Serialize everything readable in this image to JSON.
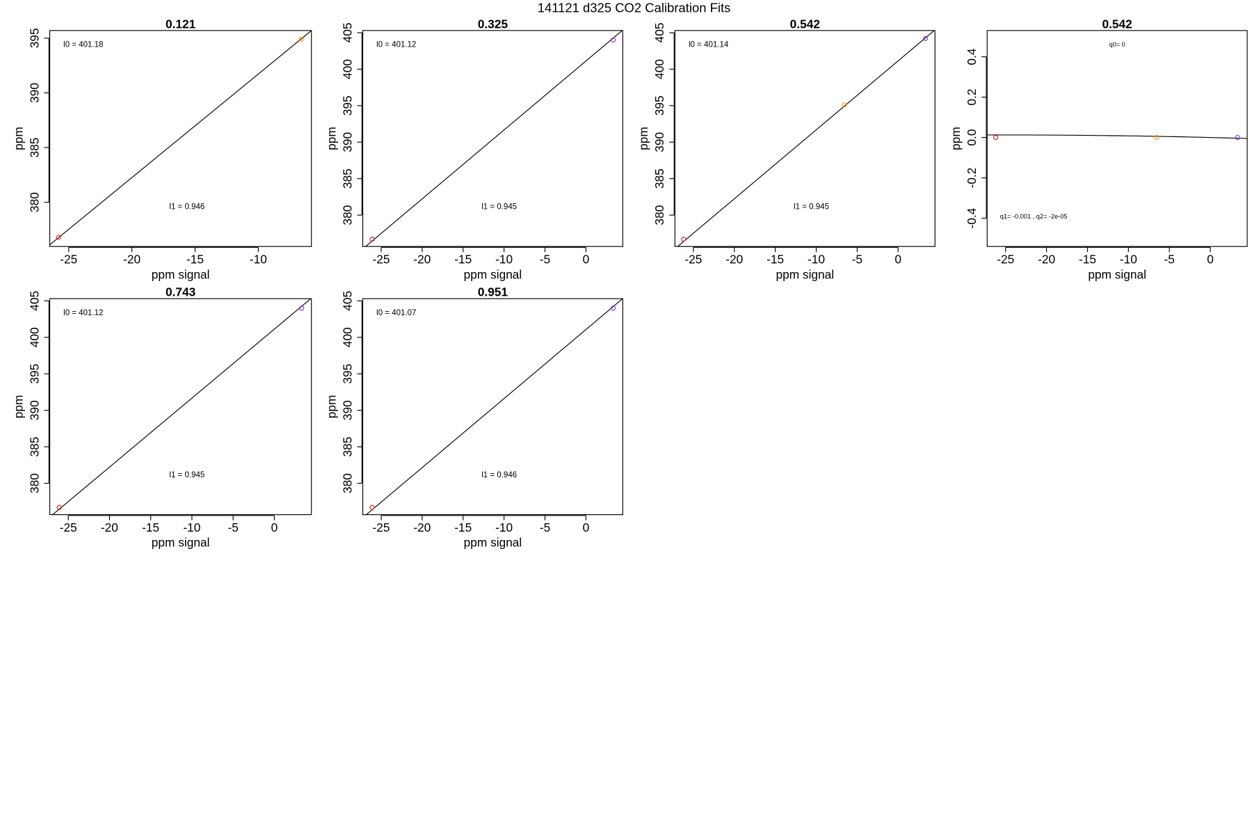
{
  "title": "141121   d325   CO2 Calibration Fits",
  "chart_data": [
    {
      "type": "scatter",
      "title": "0.121",
      "xlabel": "ppm signal",
      "ylabel": "ppm",
      "annotations": [
        "l0 =  401.18",
        "l1 =  0.946"
      ],
      "fit": {
        "intercept": 401.18,
        "slope": 0.946
      },
      "points": {
        "x": [
          -25.8,
          -6.6
        ],
        "values": [
          376.8,
          394.9
        ],
        "colors": [
          "#e41a1c",
          "#ff9900"
        ]
      },
      "xlim": [
        -26.5,
        -5.8
      ],
      "ylim": [
        375.96,
        395.7
      ],
      "xticks": [
        -25,
        -20,
        -15,
        -10
      ],
      "yticks": [
        380,
        385,
        390,
        395
      ]
    },
    {
      "type": "scatter",
      "title": "0.325",
      "xlabel": "ppm signal",
      "ylabel": "ppm",
      "annotations": [
        "l0 =  401.12",
        "l1 =  0.945"
      ],
      "fit": {
        "intercept": 401.12,
        "slope": 0.945
      },
      "points": {
        "x": [
          -26.1,
          3.33
        ],
        "values": [
          376.7,
          404.0
        ],
        "colors": [
          "#e41a1c",
          "#8a2be2"
        ]
      },
      "xlim": [
        -27.25,
        4.5
      ],
      "ylim": [
        375.7,
        405.3
      ],
      "xticks": [
        -25,
        -20,
        -15,
        -10,
        -5,
        0
      ],
      "yticks": [
        380,
        385,
        390,
        395,
        400,
        405
      ]
    },
    {
      "type": "scatter",
      "title": "0.542",
      "xlabel": "ppm signal",
      "ylabel": "ppm",
      "annotations": [
        "l0 =  401.14",
        "l1 =  0.945"
      ],
      "fit": {
        "intercept": 401.14,
        "slope": 0.945
      },
      "points": {
        "x": [
          -26.2,
          -6.57,
          3.33
        ],
        "values": [
          376.7,
          395.1,
          404.2
        ],
        "colors": [
          "#e41a1c",
          "#ff9900",
          "#8a2be2"
        ]
      },
      "xlim": [
        -27.25,
        4.5
      ],
      "ylim": [
        375.7,
        405.3
      ],
      "xticks": [
        -25,
        -20,
        -15,
        -10,
        -5,
        0
      ],
      "yticks": [
        380,
        385,
        390,
        395,
        400,
        405
      ]
    },
    {
      "type": "residual",
      "title": "0.542",
      "xlabel": "ppm signal",
      "ylabel": "ppm",
      "annotations": [
        "q0= 0",
        "q1= -0.001 , q2= -2e-05"
      ],
      "fit": {
        "q0": 0,
        "q1": -0.001,
        "q2": -2e-05
      },
      "points": {
        "x": [
          -26.2,
          -6.57,
          3.33
        ],
        "values": [
          0.0,
          0.0,
          0.0
        ],
        "colors": [
          "#e41a1c",
          "#ff9900",
          "#8a2be2"
        ]
      },
      "xlim": [
        -27.25,
        4.5
      ],
      "ylim": [
        -0.54,
        0.53
      ],
      "xticks": [
        -25,
        -20,
        -15,
        -10,
        -5,
        0
      ],
      "yticks": [
        -0.4,
        -0.2,
        {
          "value": 0,
          "label": "0.0"
        },
        0.2,
        0.4
      ]
    },
    {
      "type": "scatter",
      "title": "0.743",
      "xlabel": "ppm signal",
      "ylabel": "ppm",
      "annotations": [
        "l0 =  401.12",
        "l1 =  0.945"
      ],
      "fit": {
        "intercept": 401.12,
        "slope": 0.945
      },
      "points": {
        "x": [
          -26.1,
          3.33
        ],
        "values": [
          376.7,
          404.0
        ],
        "colors": [
          "#e41a1c",
          "#8a2be2"
        ]
      },
      "xlim": [
        -27.25,
        4.5
      ],
      "ylim": [
        375.7,
        405.3
      ],
      "xticks": [
        -25,
        -20,
        -15,
        -10,
        -5,
        0
      ],
      "yticks": [
        380,
        385,
        390,
        395,
        400,
        405
      ]
    },
    {
      "type": "scatter",
      "title": "0.951",
      "xlabel": "ppm signal",
      "ylabel": "ppm",
      "annotations": [
        "l0 =  401.07",
        "l1 =  0.946"
      ],
      "fit": {
        "intercept": 401.07,
        "slope": 0.946
      },
      "points": {
        "x": [
          -26.1,
          3.33
        ],
        "values": [
          376.7,
          404.0
        ],
        "colors": [
          "#e41a1c",
          "#8a2be2"
        ]
      },
      "xlim": [
        -27.25,
        4.5
      ],
      "ylim": [
        375.7,
        405.3
      ],
      "xticks": [
        -25,
        -20,
        -15,
        -10,
        -5,
        0
      ],
      "yticks": [
        380,
        385,
        390,
        395,
        400,
        405
      ]
    }
  ]
}
